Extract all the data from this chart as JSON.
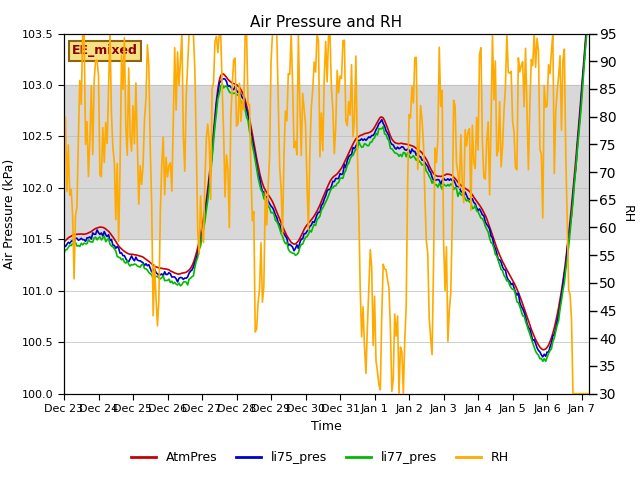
{
  "title": "Air Pressure and RH",
  "xlabel": "Time",
  "ylabel_left": "Air Pressure (kPa)",
  "ylabel_right": "RH",
  "ylim_left": [
    100.0,
    103.5
  ],
  "ylim_right": [
    30,
    95
  ],
  "yticks_left": [
    100.0,
    100.5,
    101.0,
    101.5,
    102.0,
    102.5,
    103.0,
    103.5
  ],
  "yticks_right": [
    30,
    35,
    40,
    45,
    50,
    55,
    60,
    65,
    70,
    75,
    80,
    85,
    90,
    95
  ],
  "shaded_band": [
    101.5,
    103.0
  ],
  "site_label": "EE_mixed",
  "legend_labels": [
    "AtmPres",
    "li75_pres",
    "li77_pres",
    "RH"
  ],
  "colors": {
    "AtmPres": "#cc0000",
    "li75_pres": "#0000cc",
    "li77_pres": "#00bb00",
    "RH": "#ffaa00"
  },
  "line_widths": {
    "AtmPres": 1.2,
    "li75_pres": 1.2,
    "li77_pres": 1.2,
    "RH": 1.2
  },
  "background_color": "#ffffff",
  "axes_bg_color": "#ffffff",
  "grid_color": "#bbbbbb",
  "shaded_color": "#d8d8d8",
  "pressure_waypoints_t": [
    0,
    0.5,
    1.0,
    1.5,
    2.0,
    2.5,
    3.0,
    3.25,
    3.5,
    3.75,
    4.0,
    4.25,
    4.5,
    4.75,
    5.0,
    5.25,
    5.5,
    5.75,
    6.0,
    6.25,
    6.5,
    6.75,
    7.0,
    7.25,
    7.5,
    7.75,
    8.0,
    8.25,
    8.5,
    8.75,
    9.0,
    9.25,
    9.5,
    9.75,
    10.0,
    10.25,
    10.5,
    10.75,
    11.0,
    11.25,
    11.5,
    11.75,
    12.0,
    12.25,
    12.5,
    12.75,
    13.0,
    13.25,
    13.5,
    13.75,
    14.0,
    14.25,
    14.5
  ],
  "pressure_waypoints_v": [
    101.45,
    101.55,
    101.6,
    101.5,
    101.35,
    101.3,
    101.2,
    101.15,
    101.2,
    101.3,
    101.6,
    102.2,
    103.05,
    103.1,
    103.0,
    102.85,
    102.5,
    102.1,
    101.9,
    101.7,
    101.55,
    101.5,
    101.6,
    101.7,
    101.9,
    102.1,
    102.15,
    102.3,
    102.5,
    102.55,
    102.55,
    102.65,
    102.5,
    102.45,
    102.4,
    102.35,
    102.3,
    102.15,
    102.1,
    102.1,
    102.05,
    102.0,
    101.85,
    101.7,
    101.5,
    101.3,
    101.1,
    100.9,
    100.7,
    100.5,
    100.4,
    100.6,
    101.1
  ],
  "rh_waypoints_t": [
    0,
    0.2,
    0.4,
    0.6,
    0.8,
    1.0,
    1.2,
    1.4,
    1.6,
    1.8,
    2.0,
    2.2,
    2.4,
    2.6,
    2.8,
    3.0,
    3.2,
    3.4,
    3.6,
    3.8,
    4.0,
    4.2,
    4.4,
    4.6,
    4.8,
    5.0,
    5.2,
    5.4,
    5.6,
    5.8,
    6.0,
    6.2,
    6.4,
    6.6,
    6.8,
    7.0,
    7.2,
    7.4,
    7.6,
    7.8,
    8.0,
    8.2,
    8.4,
    8.6,
    8.8,
    9.0,
    9.2,
    9.4,
    9.6,
    9.8,
    10.0,
    10.2,
    10.4,
    10.6,
    10.8,
    11.0,
    11.2,
    11.4,
    11.6,
    11.8,
    12.0,
    12.2,
    12.4,
    12.6,
    12.8,
    13.0,
    13.2,
    13.4,
    13.6,
    13.8,
    14.0,
    14.2,
    14.4,
    14.5
  ],
  "rh_waypoints_v": [
    68,
    63,
    72,
    87,
    78,
    85,
    75,
    80,
    70,
    85,
    80,
    68,
    85,
    52,
    60,
    72,
    80,
    88,
    91,
    88,
    55,
    75,
    88,
    85,
    70,
    85,
    82,
    80,
    45,
    55,
    86,
    88,
    72,
    88,
    80,
    75,
    80,
    90,
    88,
    85,
    90,
    82,
    85,
    55,
    43,
    43,
    37,
    50,
    37,
    33,
    68,
    85,
    78,
    45,
    70,
    72,
    45,
    75,
    65,
    75,
    80,
    75,
    82,
    80,
    83,
    85,
    82,
    85,
    88,
    82,
    80,
    85,
    85,
    80
  ]
}
